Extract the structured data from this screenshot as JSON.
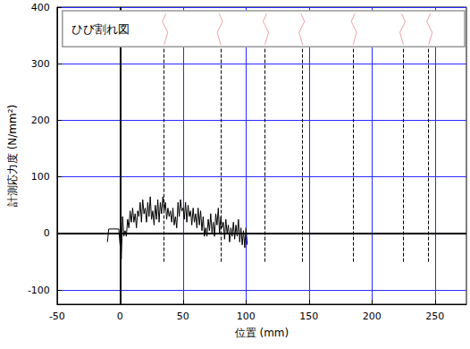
{
  "chart_data": {
    "type": "line",
    "xlabel": "位置 (mm)",
    "ylabel": "計測応力度 (N/mm²)",
    "annotation": "ひび割れ図",
    "x": [
      -10,
      -9,
      -1,
      0,
      1,
      2,
      3,
      4,
      5,
      6,
      7,
      8,
      9,
      10,
      11,
      12,
      13,
      14,
      15,
      16,
      17,
      18,
      19,
      20,
      21,
      22,
      23,
      24,
      25,
      26,
      27,
      28,
      29,
      30,
      31,
      32,
      33,
      34,
      35,
      36,
      37,
      38,
      39,
      40,
      41,
      42,
      43,
      44,
      45,
      46,
      47,
      48,
      49,
      50,
      51,
      52,
      53,
      54,
      55,
      56,
      57,
      58,
      59,
      60,
      61,
      62,
      63,
      64,
      65,
      66,
      67,
      68,
      69,
      70,
      71,
      72,
      73,
      74,
      75,
      76,
      77,
      78,
      79,
      80,
      81,
      82,
      83,
      84,
      85,
      86,
      87,
      88,
      89,
      90,
      91,
      92,
      93,
      94,
      95,
      96,
      97,
      98,
      99,
      100,
      101
    ],
    "values": [
      -15,
      8,
      8,
      -20,
      -45,
      30,
      -5,
      5,
      -5,
      25,
      10,
      40,
      20,
      45,
      20,
      35,
      10,
      40,
      30,
      55,
      20,
      60,
      35,
      45,
      20,
      55,
      30,
      65,
      25,
      40,
      15,
      50,
      25,
      60,
      20,
      55,
      35,
      65,
      40,
      55,
      25,
      45,
      30,
      40,
      20,
      45,
      15,
      30,
      10,
      55,
      30,
      60,
      40,
      45,
      25,
      55,
      20,
      50,
      30,
      40,
      15,
      45,
      20,
      35,
      10,
      45,
      15,
      40,
      5,
      30,
      -5,
      10,
      -5,
      25,
      5,
      35,
      0,
      20,
      -5,
      35,
      15,
      45,
      0,
      30,
      10,
      20,
      -10,
      25,
      0,
      15,
      -15,
      10,
      -5,
      20,
      -10,
      15,
      -5,
      25,
      -15,
      10,
      -20,
      5,
      -25,
      10,
      -20
    ],
    "color": "#000000",
    "xlim": [
      -50,
      275
    ],
    "xticks": [
      -50,
      0,
      50,
      100,
      150,
      200,
      250
    ],
    "ylim": [
      -125,
      400
    ],
    "yticks": [
      -100,
      0,
      100,
      200,
      300,
      400
    ],
    "grid": true,
    "reference_lines": {
      "x": 0,
      "y": 0
    },
    "crack_positions": [
      35,
      80,
      115,
      145,
      185,
      225,
      245
    ],
    "crack_line_range": [
      -50,
      330
    ]
  }
}
